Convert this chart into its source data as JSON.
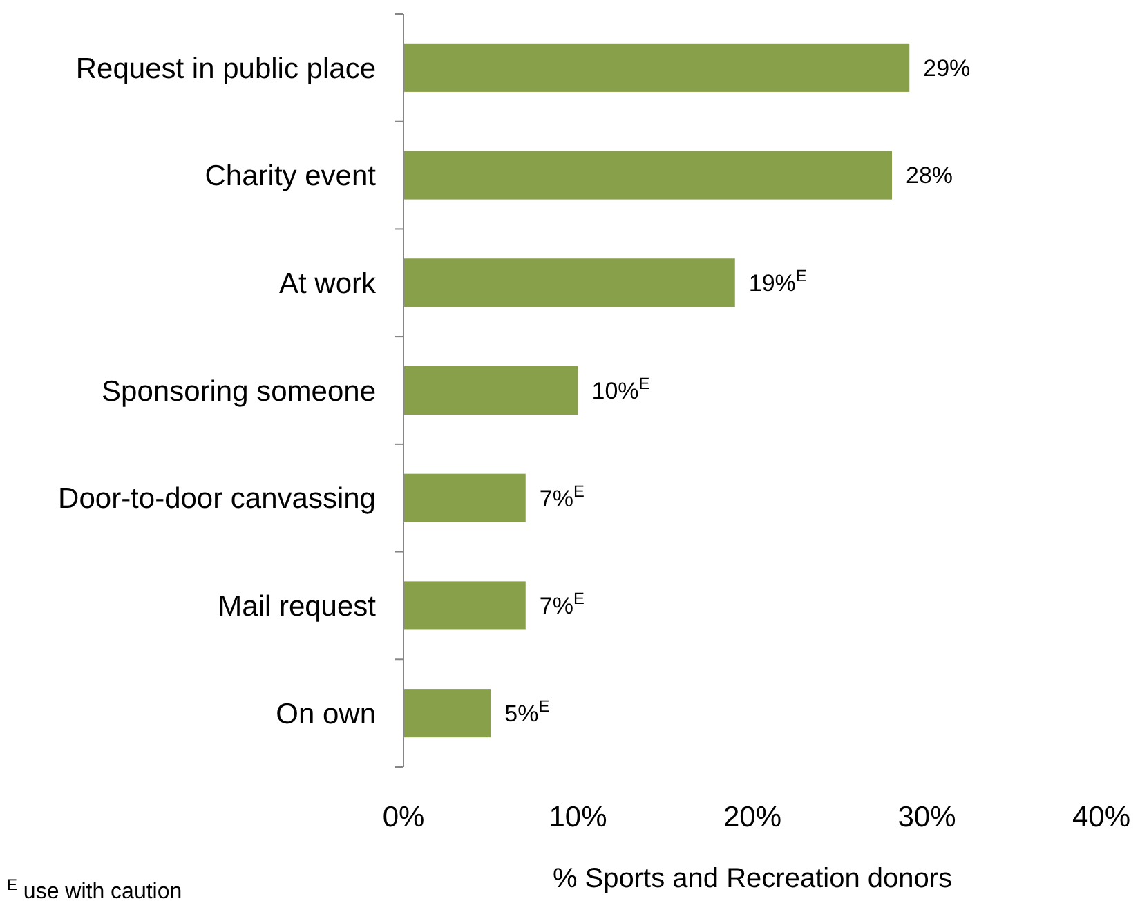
{
  "chart_data": {
    "type": "bar",
    "orientation": "horizontal",
    "categories": [
      "Request in public place",
      "Charity event",
      "At work",
      "Sponsoring someone",
      "Door-to-door canvassing",
      "Mail request",
      "On own"
    ],
    "values": [
      29,
      28,
      19,
      10,
      7,
      7,
      5
    ],
    "value_labels": [
      "29%",
      "28%",
      "19%$^{E}$",
      "10%$^{E}$",
      "7%$^{E}$",
      "7%$^{E}$",
      "5%$^{E}$"
    ],
    "color": "#88a04a",
    "xlim": [
      0,
      40
    ],
    "xticks": [
      {
        "value": 0,
        "label": "0%"
      },
      {
        "value": 10,
        "label": "10%"
      },
      {
        "value": 20,
        "label": "20%"
      },
      {
        "value": 30,
        "label": "30%"
      },
      {
        "value": 40,
        "label": "40%"
      }
    ],
    "xlabel": "% Sports and Recreation donors",
    "annotations": [
      "$^{E}$ use with caution"
    ],
    "grid": false
  }
}
